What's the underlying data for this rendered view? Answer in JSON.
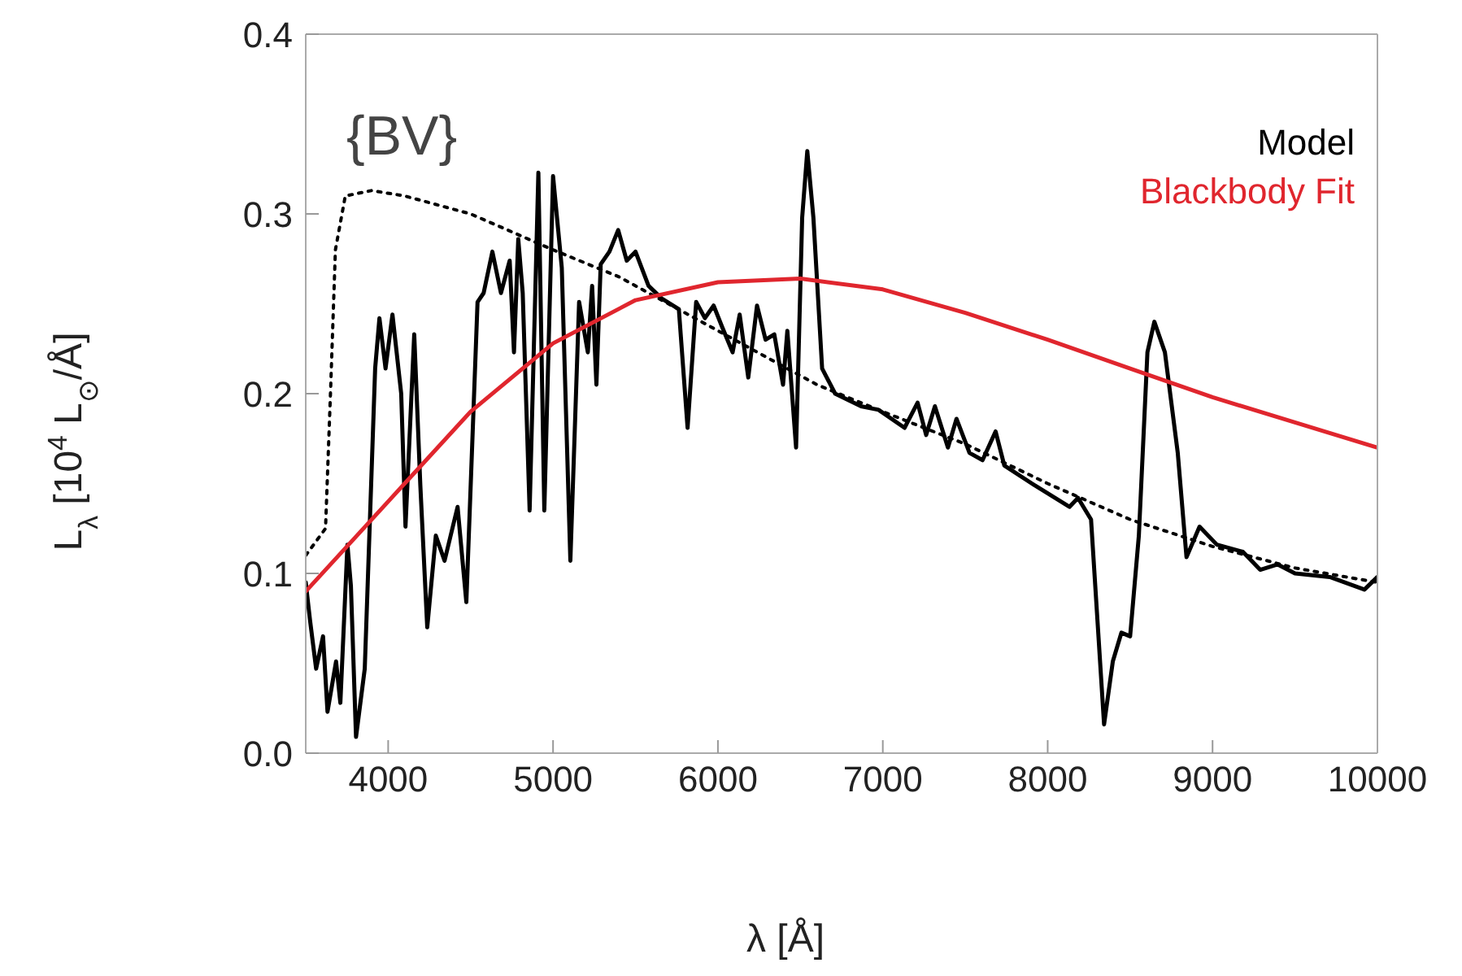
{
  "chart_data": {
    "type": "line",
    "xlabel": "λ [Å]",
    "ylabel": "L$_{λ}$ [10$^{4}$ L$_{⊙}$/Å]",
    "xlim": [
      3500,
      10000
    ],
    "ylim": [
      0,
      0.4
    ],
    "xticks": [
      4000,
      5000,
      6000,
      7000,
      8000,
      9000,
      10000
    ],
    "yticks": [
      {
        "value": 0,
        "label": "0.0"
      },
      {
        "value": 0.1,
        "label": "0.1"
      },
      {
        "value": 0.2,
        "label": "0.2"
      },
      {
        "value": 0.3,
        "label": "0.3"
      },
      {
        "value": 0.4,
        "label": "0.4"
      }
    ],
    "legend": "top right",
    "marker": "none",
    "annotations": [
      "{BV}"
    ],
    "series": [
      {
        "name": "Model",
        "color": "#000000",
        "line_style": "solid",
        "x": [
          3500,
          3526,
          3563,
          3605,
          3632,
          3684,
          3710,
          3753,
          3774,
          3805,
          3858,
          3921,
          3947,
          3984,
          4026,
          4079,
          4105,
          4158,
          4195,
          4237,
          4289,
          4342,
          4421,
          4474,
          4542,
          4579,
          4632,
          4684,
          4737,
          4763,
          4789,
          4816,
          4858,
          4911,
          4947,
          5000,
          5053,
          5105,
          5158,
          5211,
          5237,
          5263,
          5289,
          5342,
          5395,
          5447,
          5500,
          5579,
          5658,
          5763,
          5816,
          5868,
          5921,
          5974,
          6026,
          6089,
          6132,
          6184,
          6237,
          6289,
          6342,
          6395,
          6421,
          6474,
          6511,
          6542,
          6579,
          6632,
          6711,
          6868,
          6974,
          7132,
          7211,
          7263,
          7316,
          7395,
          7447,
          7526,
          7605,
          7684,
          7737,
          7921,
          8132,
          8184,
          8263,
          8342,
          8395,
          8447,
          8500,
          8553,
          8605,
          8647,
          8711,
          8789,
          8842,
          8921,
          9026,
          9184,
          9289,
          9395,
          9500,
          9711,
          9921,
          10000
        ],
        "values": [
          0.095,
          0.074,
          0.047,
          0.065,
          0.023,
          0.051,
          0.028,
          0.116,
          0.093,
          0.009,
          0.047,
          0.214,
          0.242,
          0.214,
          0.244,
          0.2,
          0.126,
          0.233,
          0.149,
          0.07,
          0.121,
          0.107,
          0.137,
          0.084,
          0.251,
          0.256,
          0.279,
          0.256,
          0.274,
          0.223,
          0.286,
          0.256,
          0.135,
          0.323,
          0.135,
          0.321,
          0.27,
          0.107,
          0.251,
          0.223,
          0.26,
          0.205,
          0.272,
          0.279,
          0.291,
          0.274,
          0.279,
          0.26,
          0.253,
          0.247,
          0.181,
          0.251,
          0.242,
          0.249,
          0.237,
          0.223,
          0.244,
          0.209,
          0.249,
          0.23,
          0.233,
          0.205,
          0.235,
          0.17,
          0.298,
          0.335,
          0.298,
          0.214,
          0.2,
          0.193,
          0.191,
          0.181,
          0.195,
          0.177,
          0.193,
          0.17,
          0.186,
          0.167,
          0.163,
          0.179,
          0.16,
          0.149,
          0.137,
          0.142,
          0.13,
          0.016,
          0.051,
          0.067,
          0.065,
          0.121,
          0.223,
          0.24,
          0.223,
          0.167,
          0.109,
          0.126,
          0.116,
          0.112,
          0.102,
          0.105,
          0.1,
          0.098,
          0.091,
          0.098
        ]
      },
      {
        "color": "#000000",
        "line_style": "dotted",
        "x": [
          3500,
          3620,
          3650,
          3680,
          3740,
          3900,
          4100,
          4500,
          5000,
          5400,
          5800,
          6200,
          6600,
          7000,
          7500,
          8000,
          8500,
          9000,
          9500,
          10000
        ],
        "values": [
          0.11,
          0.125,
          0.2,
          0.28,
          0.31,
          0.313,
          0.31,
          0.3,
          0.28,
          0.265,
          0.245,
          0.225,
          0.205,
          0.19,
          0.172,
          0.15,
          0.13,
          0.115,
          0.103,
          0.095
        ]
      },
      {
        "name": "Blackbody Fit",
        "color": "#e0262e",
        "line_style": "solid",
        "x": [
          3500,
          4000,
          4500,
          5000,
          5500,
          6000,
          6500,
          7000,
          7500,
          8000,
          8500,
          9000,
          9500,
          10000
        ],
        "values": [
          0.09,
          0.14,
          0.19,
          0.228,
          0.252,
          0.262,
          0.264,
          0.258,
          0.245,
          0.23,
          0.214,
          0.198,
          0.184,
          0.17
        ]
      }
    ]
  }
}
